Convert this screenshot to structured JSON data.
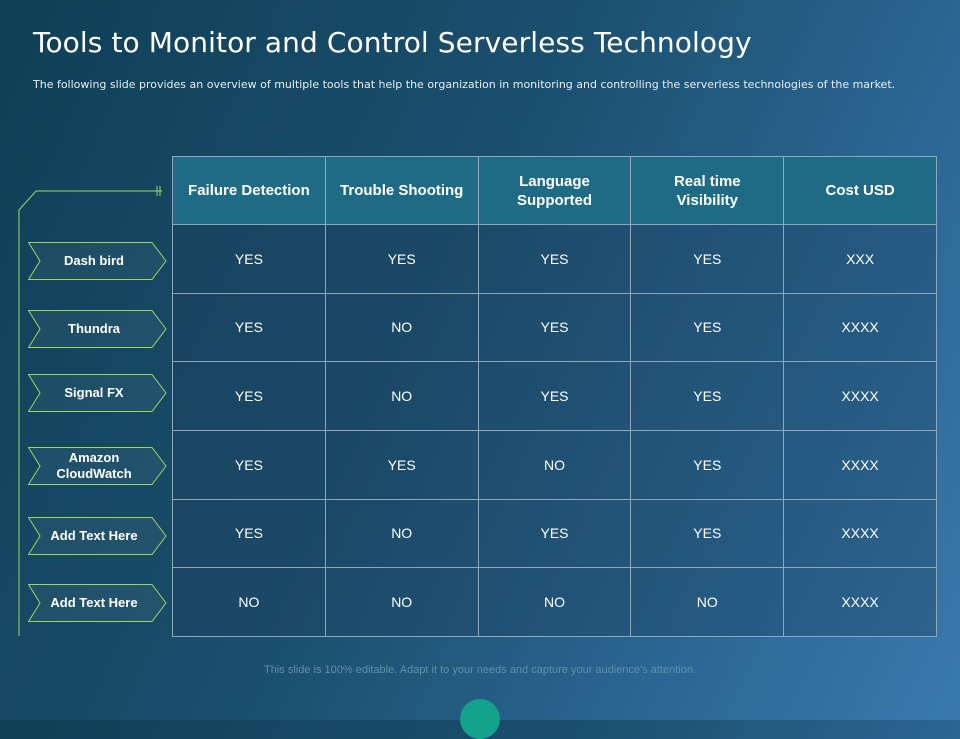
{
  "slide": {
    "title": "Tools to Monitor and Control Serverless Technology",
    "subtitle": "The following slide provides an overview of  multiple tools that help the organization in monitoring and controlling the serverless technologies of the market.",
    "footer": "This slide is 100% editable. Adapt it to your needs and capture your audience's attention."
  },
  "colors": {
    "accent_green": "#9ed65a",
    "header_teal": "#1f6b86",
    "dot_teal": "#13a38d"
  },
  "table": {
    "headers": [
      "Failure Detection",
      "Trouble Shooting",
      "Language Supported",
      "Real time Visibility",
      "Cost USD"
    ],
    "rows": [
      {
        "label": "Dash bird",
        "cells": [
          "YES",
          "YES",
          "YES",
          "YES",
          "XXX"
        ]
      },
      {
        "label": "Thundra",
        "cells": [
          "YES",
          "NO",
          "YES",
          "YES",
          "XXXX"
        ]
      },
      {
        "label": "Signal FX",
        "cells": [
          "YES",
          "NO",
          "YES",
          "YES",
          "XXXX"
        ]
      },
      {
        "label": "Amazon CloudWatch",
        "cells": [
          "YES",
          "YES",
          "NO",
          "YES",
          "XXXX"
        ]
      },
      {
        "label": "Add Text Here",
        "cells": [
          "YES",
          "NO",
          "YES",
          "YES",
          "XXXX"
        ]
      },
      {
        "label": "Add Text Here",
        "cells": [
          "NO",
          "NO",
          "NO",
          "NO",
          "XXXX"
        ]
      }
    ]
  }
}
